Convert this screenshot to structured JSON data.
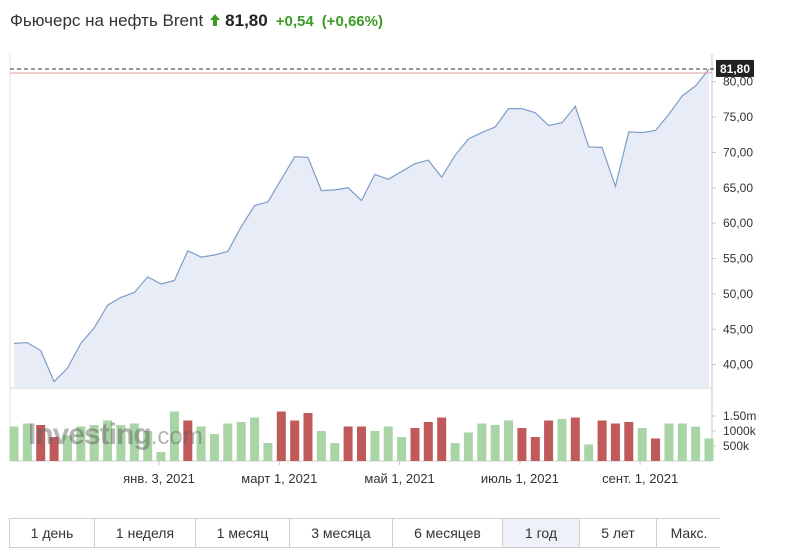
{
  "header": {
    "title": "Фьючерс на нефть Brent",
    "price": "81,80",
    "change": "+0,54",
    "change_pct": "(+0,66%)",
    "up_color": "#3b9b26"
  },
  "logo": {
    "main": "Investing",
    "suffix": ".com"
  },
  "tabs": [
    {
      "label": "1 день",
      "active": false
    },
    {
      "label": "1 неделя",
      "active": false
    },
    {
      "label": "1 месяц",
      "active": false
    },
    {
      "label": "3 месяца",
      "active": false
    },
    {
      "label": "6 месяцев",
      "active": false
    },
    {
      "label": "1 год",
      "active": true
    },
    {
      "label": "5 лет",
      "active": false
    },
    {
      "label": "Макс.",
      "active": false
    }
  ],
  "chart_data": {
    "type": "area",
    "title": "",
    "xlabel": "",
    "ylabel": "",
    "ylim": [
      36.7,
      82.5
    ],
    "y_ticks": [
      40,
      45,
      50,
      55,
      60,
      65,
      70,
      75,
      80
    ],
    "y_tick_labels": [
      "40,00",
      "45,00",
      "50,00",
      "55,00",
      "60,00",
      "65,00",
      "70,00",
      "75,00",
      "80,00"
    ],
    "last_value": 81.8,
    "last_value_label": "81,80",
    "x_tick_labels": [
      {
        "label": "янв. 3, 2021",
        "index": 11
      },
      {
        "label": "март 1, 2021",
        "index": 20
      },
      {
        "label": "май 1, 2021",
        "index": 29
      },
      {
        "label": "июль 1, 2021",
        "index": 38
      },
      {
        "label": "сент. 1, 2021",
        "index": 47
      }
    ],
    "series": [
      {
        "values": [
          43.0,
          43.1,
          42.0,
          37.6,
          39.5,
          43.0,
          45.2,
          48.4,
          49.5,
          50.2,
          52.4,
          51.4,
          51.9,
          56.1,
          55.2,
          55.5,
          56.0,
          59.5,
          62.5,
          63.0,
          66.2,
          69.4,
          69.3,
          64.6,
          64.7,
          65.0,
          63.2,
          66.9,
          66.2,
          67.3,
          68.4,
          68.9,
          66.5,
          69.6,
          71.9,
          72.8,
          73.6,
          76.2,
          76.2,
          75.6,
          73.8,
          74.2,
          76.5,
          70.8,
          70.7,
          65.2,
          72.9,
          72.8,
          73.1,
          75.4,
          78.0,
          79.4,
          81.8
        ]
      }
    ],
    "volume": {
      "y_tick_labels": [
        "1.50m",
        "1000k",
        "500k"
      ],
      "y_ticks": [
        1500,
        1000,
        500
      ],
      "max": 1900,
      "values": [
        1150,
        1250,
        1200,
        800,
        850,
        1150,
        1200,
        1350,
        1200,
        1250,
        1000,
        300,
        1650,
        1350,
        1150,
        900,
        1250,
        1300,
        1450,
        600,
        1650,
        1350,
        1600,
        1000,
        600,
        1150,
        1150,
        1000,
        1150,
        800,
        1100,
        1300,
        1450,
        600,
        950,
        1250,
        1200,
        1350,
        1100,
        800,
        1350,
        1400,
        1450,
        550,
        1350,
        1250,
        1300,
        1100,
        750,
        1250,
        1250,
        1150,
        750
      ],
      "up": [
        true,
        true,
        false,
        false,
        true,
        true,
        true,
        true,
        true,
        true,
        true,
        true,
        true,
        false,
        true,
        true,
        true,
        true,
        true,
        true,
        false,
        false,
        false,
        true,
        true,
        false,
        false,
        true,
        true,
        true,
        false,
        false,
        false,
        true,
        true,
        true,
        true,
        true,
        false,
        false,
        false,
        true,
        false,
        true,
        false,
        false,
        false,
        true,
        false,
        true,
        true,
        true,
        true
      ],
      "up_color": "#a9d4a6",
      "down_color": "#c0595a"
    },
    "colors": {
      "line": "#7d9dc8",
      "fill": "#e8ecf6",
      "dash": "#333333",
      "ref": "#e39d9d",
      "label_bg": "#222222"
    }
  }
}
